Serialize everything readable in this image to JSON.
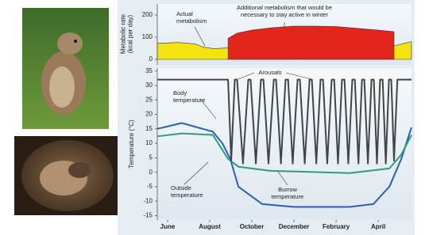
{
  "chart_data": [
    {
      "type": "area",
      "ylabel": [
        "Metabolic rate",
        "(kcal per day)"
      ],
      "xlim": [
        -0.49,
        11.58
      ],
      "ylim": [
        -25,
        250
      ],
      "yticks": [
        0,
        100,
        200
      ],
      "series": [
        {
          "color": "#f2e411",
          "x": [
            -0.49,
            0.5,
            1.3,
            1.7,
            2.2,
            2.87,
            4,
            6,
            8,
            10,
            10.8,
            11.58
          ],
          "values": [
            72,
            76,
            70,
            55,
            48,
            52,
            58,
            56,
            54,
            56,
            62,
            80
          ]
        },
        {
          "color": "#e3261c",
          "x": [
            2.87,
            3.3,
            4,
            5,
            6,
            7,
            8,
            9,
            10,
            10.75
          ],
          "values": [
            95,
            118,
            132,
            143,
            150,
            150,
            148,
            140,
            132,
            125
          ]
        }
      ],
      "annotations": [
        {
          "lines": [
            "Actual",
            "metabolism"
          ]
        },
        {
          "lines": [
            "Additional metabolism that would be",
            "necessary to stay active in winter"
          ]
        }
      ]
    },
    {
      "type": "line",
      "ylabel": [
        "Temperature (°C)"
      ],
      "xlim": [
        -0.49,
        11.58
      ],
      "ylim": [
        -16.5,
        36
      ],
      "xticks": [
        {
          "value": 0,
          "label": "June"
        },
        {
          "value": 2,
          "label": "August"
        },
        {
          "value": 4,
          "label": "October"
        },
        {
          "value": 6,
          "label": "December"
        },
        {
          "value": 8,
          "label": "February"
        },
        {
          "value": 10,
          "label": "April"
        }
      ],
      "yticks": [
        35,
        30,
        25,
        20,
        15,
        10,
        5,
        0,
        -5,
        -10,
        -15
      ],
      "series": [
        {
          "color": "#2a5fb5",
          "x": [
            -0.49,
            0.68,
            2.15,
            2.6,
            2.98,
            3.36,
            4.49,
            6,
            8.64,
            9.77,
            10.53,
            11.09,
            11.58
          ],
          "values": [
            15,
            17,
            14,
            10,
            4.5,
            -5,
            -11,
            -12,
            -12,
            -11,
            -5,
            4.5,
            15.5
          ]
        },
        {
          "color": "#2a9f78",
          "x": [
            -0.49,
            0.68,
            2.15,
            2.87,
            3.36,
            4.87,
            8.64,
            10.53,
            11.09,
            11.58
          ],
          "values": [
            12.4,
            13.4,
            12.9,
            4.6,
            1.9,
            0.5,
            -0.3,
            1.3,
            6,
            12.9
          ]
        },
        {
          "color": "#444444",
          "x": [
            -0.49,
            2.87,
            3.02,
            3.19,
            3.3,
            3.58,
            3.83,
            3.94,
            4.19,
            4.43,
            4.55,
            4.79,
            5.04,
            5.15,
            5.38,
            5.6,
            5.72,
            5.94,
            6.17,
            6.28,
            6.51,
            6.74,
            6.85,
            7.06,
            7.26,
            7.38,
            7.58,
            7.79,
            7.91,
            8.09,
            8.28,
            8.4,
            8.58,
            8.77,
            8.89,
            9.06,
            9.23,
            9.34,
            9.51,
            9.68,
            9.79,
            9.94,
            10.09,
            10.21,
            10.36,
            10.51,
            10.62,
            10.75,
            10.91,
            11.58
          ],
          "values": [
            32,
            32,
            4,
            32,
            32,
            3,
            32,
            32,
            3,
            32,
            32,
            3,
            32,
            32,
            3,
            32,
            32,
            3,
            32,
            32,
            3,
            32,
            32,
            3,
            32,
            32,
            3,
            32,
            32,
            3,
            32,
            32,
            3,
            32,
            32,
            3,
            32,
            32,
            3,
            32,
            32,
            3,
            32,
            32,
            3,
            32,
            32,
            4,
            32,
            32
          ]
        }
      ],
      "annotations": [
        {
          "lines": [
            "Arousals"
          ]
        },
        {
          "lines": [
            "Body",
            "temperature"
          ]
        },
        {
          "lines": [
            "Outside",
            "temperature"
          ]
        },
        {
          "lines": [
            "Burrow",
            "temperature"
          ]
        }
      ]
    }
  ]
}
